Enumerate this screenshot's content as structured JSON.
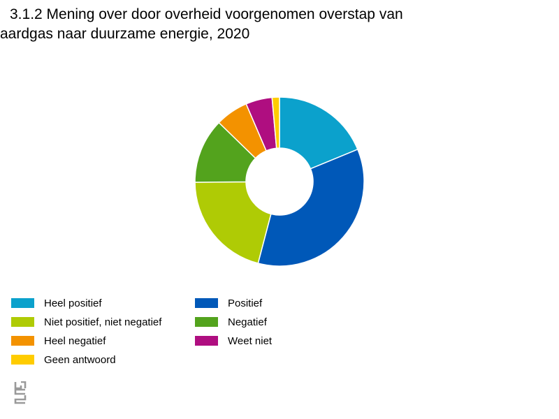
{
  "title_line1": "3.1.2 Mening over door overheid voorgenomen overstap van",
  "title_line2": "aardgas naar duurzame energie, 2020",
  "chart_data": {
    "type": "pie",
    "donut": true,
    "title": "3.1.2 Mening over door overheid voorgenomen overstap van aardgas naar duurzame energie, 2020",
    "legend_position": "bottom",
    "categories": [
      "Heel positief",
      "Positief",
      "Niet positief, niet negatief",
      "Negatief",
      "Heel negatief",
      "Weet niet",
      "Geen antwoord"
    ],
    "values": [
      18.6,
      35.0,
      20.6,
      12.3,
      6.2,
      5.0,
      1.4
    ],
    "colors": [
      "#0ba1cc",
      "#0058b8",
      "#afcb05",
      "#53a31d",
      "#f39200",
      "#af0e80",
      "#ffcc00"
    ]
  },
  "logo": {
    "icon": "cbs-logo-icon",
    "color": "#9a9a9a"
  }
}
